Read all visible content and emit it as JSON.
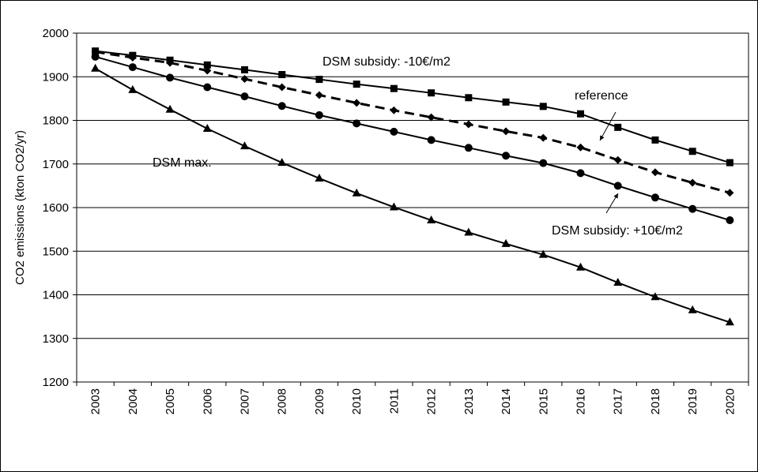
{
  "chart_data": {
    "type": "line",
    "title": "",
    "xlabel": "",
    "ylabel": "CO2 emissions (kton CO2/yr)",
    "ylim": [
      1200,
      2000
    ],
    "yticks": [
      1200,
      1300,
      1400,
      1500,
      1600,
      1700,
      1800,
      1900,
      2000
    ],
    "grid": "horizontal",
    "categories": [
      "2003",
      "2004",
      "2005",
      "2006",
      "2007",
      "2008",
      "2009",
      "2010",
      "2011",
      "2012",
      "2013",
      "2014",
      "2015",
      "2016",
      "2017",
      "2018",
      "2019",
      "2020"
    ],
    "series": [
      {
        "name": "DSM subsidy: -10€/m2",
        "marker": "square",
        "dash": "solid",
        "color": "#000000",
        "values": [
          1959,
          1949,
          1938,
          1927,
          1916,
          1905,
          1894,
          1883,
          1873,
          1863,
          1852,
          1842,
          1832,
          1815,
          1784,
          1755,
          1729,
          1703
        ]
      },
      {
        "name": "reference",
        "marker": "diamond",
        "dash": "dashed",
        "color": "#000000",
        "values": [
          1957,
          1944,
          1932,
          1914,
          1895,
          1876,
          1858,
          1840,
          1823,
          1807,
          1791,
          1775,
          1760,
          1738,
          1709,
          1681,
          1657,
          1634
        ]
      },
      {
        "name": "DSM subsidy: +10€/m2",
        "marker": "circle",
        "dash": "solid",
        "color": "#000000",
        "values": [
          1946,
          1922,
          1898,
          1876,
          1855,
          1833,
          1812,
          1793,
          1774,
          1755,
          1737,
          1719,
          1702,
          1679,
          1650,
          1623,
          1597,
          1571
        ]
      },
      {
        "name": "DSM max.",
        "marker": "triangle",
        "dash": "solid",
        "color": "#000000",
        "values": [
          1919,
          1870,
          1825,
          1781,
          1741,
          1703,
          1667,
          1633,
          1601,
          1571,
          1543,
          1517,
          1492,
          1463,
          1428,
          1395,
          1365,
          1337
        ]
      }
    ],
    "annotations": [
      {
        "text": "DSM subsidy: -10€/m2"
      },
      {
        "text": "reference"
      },
      {
        "text": "DSM subsidy: +10€/m2"
      },
      {
        "text": "DSM max."
      }
    ]
  }
}
